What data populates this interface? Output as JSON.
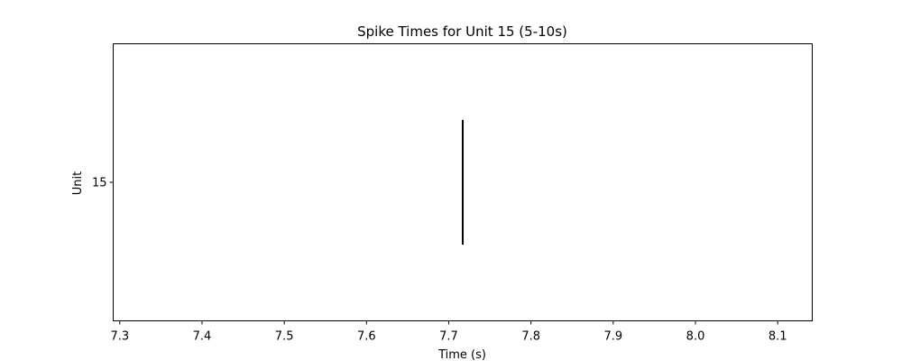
{
  "chart_data": {
    "type": "raster",
    "title": "Spike Times for Unit 15 (5-10s)",
    "xlabel": "Time (s)",
    "ylabel": "Unit",
    "xlim": [
      7.292,
      8.142
    ],
    "ylim": [
      14,
      16
    ],
    "xticks": [
      "7.3",
      "7.4",
      "7.5",
      "7.6",
      "7.7",
      "7.8",
      "7.9",
      "8.0",
      "8.1"
    ],
    "yticks": [
      "15"
    ],
    "grid": false,
    "units": [
      {
        "unit": 15,
        "spike_times": [
          7.717
        ]
      }
    ],
    "colors": {
      "spike": "#000000",
      "frame": "#000000"
    }
  }
}
